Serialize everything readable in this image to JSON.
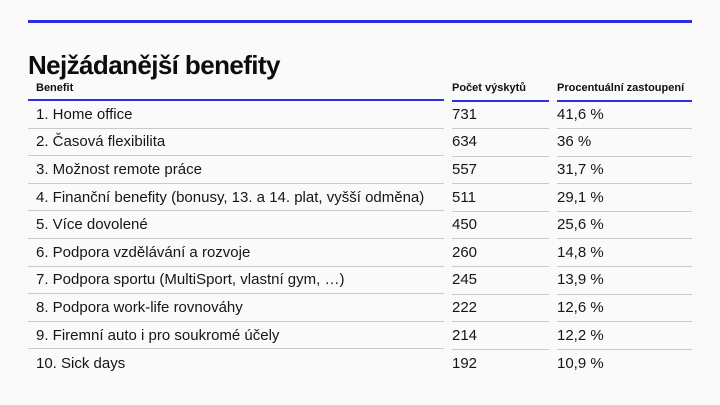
{
  "page": {
    "title": "Nejžádanější benefity"
  },
  "colors": {
    "accent_blue": "#2d2de2",
    "row_divider": "#c9c9c9",
    "background": "#fafafa",
    "text": "#161616"
  },
  "table": {
    "columns": [
      "Benefit",
      "Počet výskytů",
      "Procentuální zastoupení"
    ],
    "rows": [
      {
        "benefit": "1. Home office",
        "count": "731",
        "percent": "41,6 %"
      },
      {
        "benefit": "2. Časová flexibilita",
        "count": "634",
        "percent": "36 %"
      },
      {
        "benefit": "3. Možnost remote práce",
        "count": "557",
        "percent": "31,7 %"
      },
      {
        "benefit": "4. Finanční benefity (bonusy, 13. a 14. plat, vyšší odměna)",
        "count": "511",
        "percent": "29,1 %"
      },
      {
        "benefit": "5. Více dovolené",
        "count": "450",
        "percent": "25,6 %"
      },
      {
        "benefit": "6. Podpora vzdělávání a rozvoje",
        "count": "260",
        "percent": "14,8 %"
      },
      {
        "benefit": "7. Podpora sportu (MultiSport, vlastní gym, …)",
        "count": "245",
        "percent": "13,9 %"
      },
      {
        "benefit": "8. Podpora work-life rovnováhy",
        "count": "222",
        "percent": "12,6 %"
      },
      {
        "benefit": "9. Firemní auto i pro soukromé účely",
        "count": "214",
        "percent": "12,2 %"
      },
      {
        "benefit": "10. Sick days",
        "count": "192",
        "percent": "10,9 %"
      }
    ]
  }
}
